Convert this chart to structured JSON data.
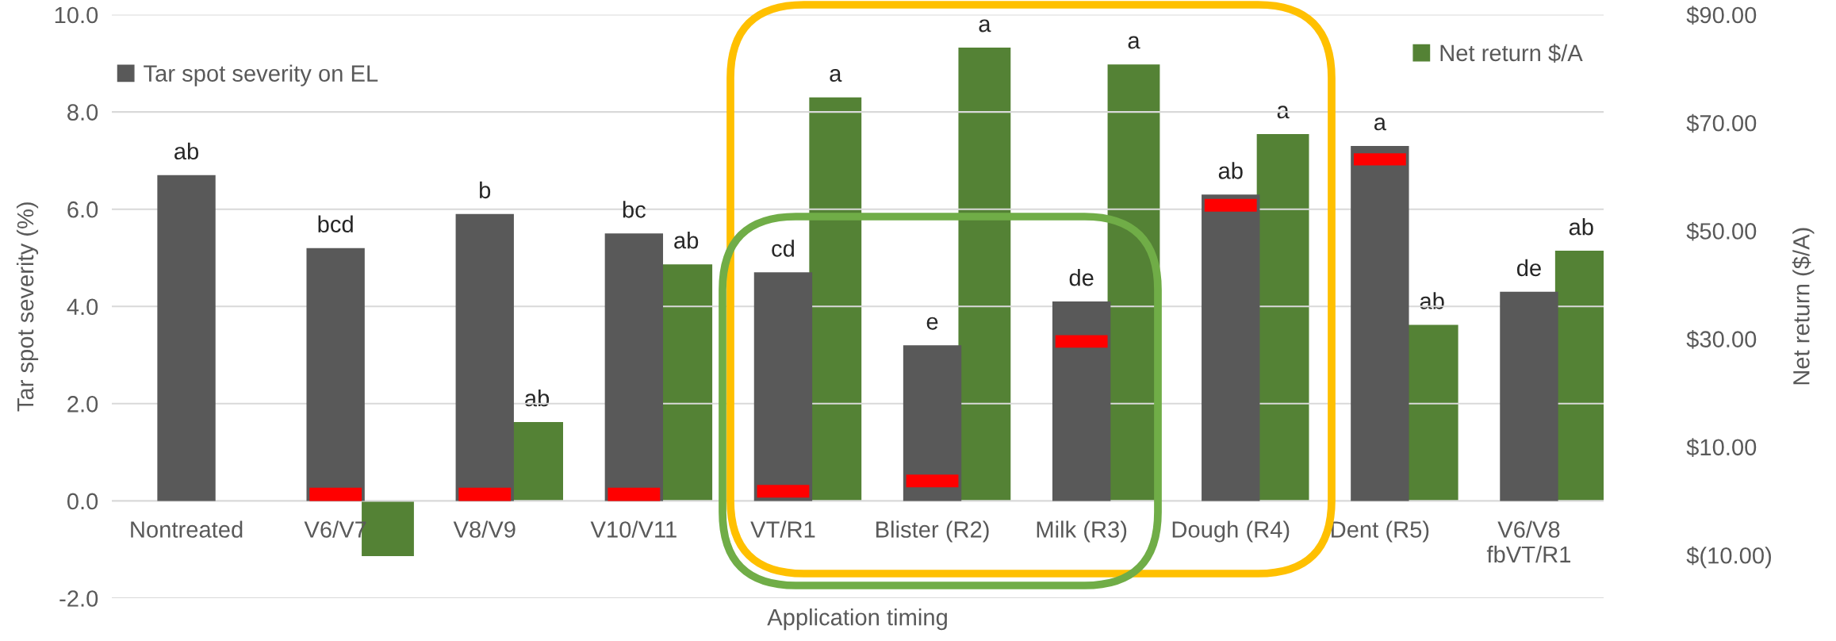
{
  "chart_data": {
    "type": "bar",
    "xlabel": "Application timing",
    "ylabel": "Tar spot severity (%)",
    "y2label": "Net return ($/A)",
    "categories": [
      "Nontreated",
      "V6/V7",
      "V8/V9",
      "V10/V11",
      "VT/R1",
      "Blister (R2)",
      "Milk (R3)",
      "Dough (R4)",
      "Dent (R5)",
      "V6/V8\nfbVT/R1"
    ],
    "series": [
      {
        "name": "Tar spot severity on EL",
        "color": "#595959",
        "values": [
          6.7,
          5.2,
          5.9,
          5.5,
          4.7,
          3.2,
          4.1,
          6.3,
          7.3,
          4.3
        ],
        "value_labels": [
          "ab",
          "bcd",
          "b",
          "bc",
          "cd",
          "e",
          "de",
          "ab",
          "a",
          "de"
        ]
      },
      {
        "color": "#ff0000",
        "base": [
          null,
          0,
          0,
          0,
          0.07,
          0.28,
          3.15,
          5.95,
          6.9,
          null
        ],
        "values": [
          null,
          0.27,
          0.27,
          0.27,
          0.26,
          0.26,
          0.26,
          0.26,
          0.25,
          null
        ]
      },
      {
        "name": "Net return $/A",
        "color": "#548235",
        "axis": "y2",
        "values": [
          null,
          -10.2,
          14.6,
          43.8,
          74.7,
          83.9,
          80.8,
          67.9,
          32.6,
          46.3
        ],
        "value_labels": [
          null,
          null,
          "ab",
          "ab",
          "a",
          "a",
          "a",
          "a",
          "ab",
          "ab"
        ]
      }
    ],
    "ylim": [
      -2,
      10
    ],
    "yticks": [
      {
        "value": -2,
        "label": "-2.0"
      },
      {
        "value": 0,
        "label": "0.0"
      },
      {
        "value": 2,
        "label": "2.0"
      },
      {
        "value": 4,
        "label": "4.0"
      },
      {
        "value": 6,
        "label": "6.0"
      },
      {
        "value": 8,
        "label": "8.0"
      },
      {
        "value": 10,
        "label": "10.0"
      }
    ],
    "y2lim": [
      -18,
      90
    ],
    "y2ticks": [
      {
        "value": -10,
        "label": "$(10.00)"
      },
      {
        "value": 10,
        "label": "$10.00"
      },
      {
        "value": 30,
        "label": "$30.00"
      },
      {
        "value": 50,
        "label": "$50.00"
      },
      {
        "value": 70,
        "label": "$70.00"
      },
      {
        "value": 90,
        "label": "$90.00"
      }
    ],
    "grid": "y",
    "legend": "top"
  }
}
